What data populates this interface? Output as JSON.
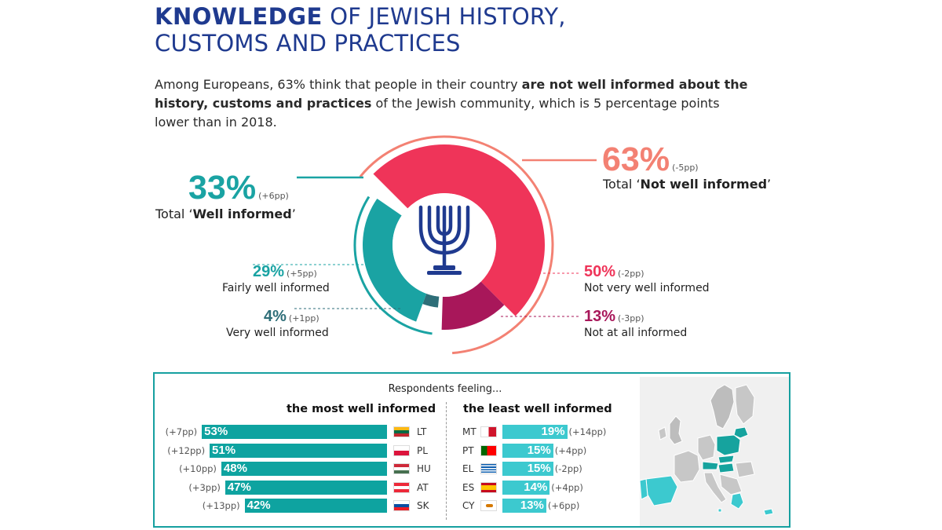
{
  "title": {
    "bold": "KNOWLEDGE",
    "rest_line1": " OF JEWISH HISTORY,",
    "line2": "CUSTOMS AND PRACTICES"
  },
  "intro": {
    "part1": "Among Europeans, 63% think that people in their country ",
    "bold": "are not well informed about the history, customs and practices",
    "part2": " of the Jewish community, which is 5 percentage points lower than in 2018."
  },
  "colors": {
    "teal": "#1aa3a3",
    "teal_dark": "#2e6e78",
    "pink": "#ef3459",
    "salmon": "#f38173",
    "crimson": "#a8175a",
    "blue": "#1f3a8f",
    "bar_teal": "#0ea3a0",
    "bar_light": "#3cc9cf"
  },
  "chart_data": [
    {
      "type": "pie",
      "title": "Knowledge of Jewish history, customs and practices",
      "center_icon": "menorah-icon",
      "totals": [
        {
          "label_prefix": "Total ‘",
          "label_bold": "Well informed",
          "label_suffix": "’",
          "pct": "33%",
          "change": "(+6pp)",
          "value": 33
        },
        {
          "label_prefix": "Total ‘",
          "label_bold": "Not well informed",
          "label_suffix": "’",
          "pct": "63%",
          "change": "(-5pp)",
          "value": 63
        }
      ],
      "segments": [
        {
          "name": "Fairly well informed",
          "pct": "29%",
          "change": "(+5pp)",
          "value": 29
        },
        {
          "name": "Very well informed",
          "pct": "4%",
          "change": "(+1pp)",
          "value": 4
        },
        {
          "name": "Not very well informed",
          "pct": "50%",
          "change": "(-2pp)",
          "value": 50
        },
        {
          "name": "Not at all informed",
          "pct": "13%",
          "change": "(-3pp)",
          "value": 13
        }
      ]
    },
    {
      "type": "bar",
      "title": "Respondents feeling...",
      "groups": [
        {
          "heading": "the most well informed",
          "items": [
            {
              "country": "LT",
              "value": 53,
              "label": "53%",
              "change": "(+7pp)"
            },
            {
              "country": "PL",
              "value": 51,
              "label": "51%",
              "change": "(+12pp)"
            },
            {
              "country": "HU",
              "value": 48,
              "label": "48%",
              "change": "(+10pp)"
            },
            {
              "country": "AT",
              "value": 47,
              "label": "47%",
              "change": "(+3pp)"
            },
            {
              "country": "SK",
              "value": 42,
              "label": "42%",
              "change": "(+13pp)"
            }
          ]
        },
        {
          "heading": "the least well informed",
          "items": [
            {
              "country": "MT",
              "value": 19,
              "label": "19%",
              "change": "(+14pp)"
            },
            {
              "country": "PT",
              "value": 15,
              "label": "15%",
              "change": "(+4pp)"
            },
            {
              "country": "EL",
              "value": 15,
              "label": "15%",
              "change": "(-2pp)"
            },
            {
              "country": "ES",
              "value": 14,
              "label": "14%",
              "change": "(+4pp)"
            },
            {
              "country": "CY",
              "value": 13,
              "label": "13%",
              "change": "(+6pp)"
            }
          ]
        }
      ]
    }
  ]
}
